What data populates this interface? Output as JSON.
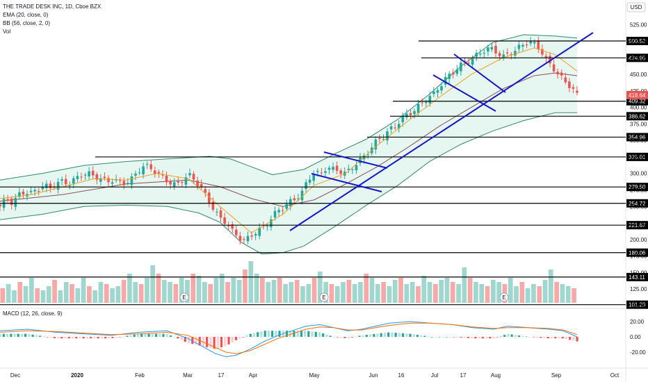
{
  "header": {
    "symbol_line": "THE TRADE DESK INC, 1D, Cboe BZX",
    "ema_line": "EMA (20, close, 0)",
    "bb_line": "BB (56, close, 2, 0)",
    "vol_line": "Vol",
    "currency": "USD",
    "macd_line": "MACD (12, 26, close, 9)"
  },
  "price_axis": {
    "ticks": [
      "525.00",
      "500.00",
      "475.00",
      "450.00",
      "425.00",
      "400.00",
      "375.00",
      "350.00",
      "325.00",
      "300.00",
      "275.00",
      "250.00",
      "225.00",
      "200.00",
      "175.00",
      "150.00",
      "125.00",
      "100.00"
    ],
    "last_price": "418.64",
    "last_price_color": "#ef5350"
  },
  "macd_axis": {
    "ticks": [
      "20.00",
      "0.00",
      "-20.00"
    ]
  },
  "time_axis": {
    "labels": [
      "Dec",
      "2020",
      "Feb",
      "Mar",
      "17",
      "Apr",
      "May",
      "Jun",
      "16",
      "Jul",
      "17",
      "Aug",
      "Sep",
      "Oct"
    ]
  },
  "earnings_markers": [
    "E",
    "E",
    "E"
  ],
  "colors": {
    "up": "#26a69a",
    "down": "#ef5350",
    "ema": "#f0a020",
    "bb_basis": "#8d4f4f",
    "bb_band": "#2e8b6a",
    "bb_fill": "#e6f6f1",
    "trendline": "#1515c9",
    "level": "#000000",
    "macd": "#2196f3",
    "signal": "#ff6d00"
  },
  "chart_data": {
    "type": "candlestick",
    "title": "THE TRADE DESK INC, 1D, Cboe BZX",
    "y_range_price": [
      100,
      530
    ],
    "y_range_macd": [
      -30,
      30
    ],
    "horizontal_levels": [
      {
        "value": 500.52,
        "label": "500.52"
      },
      {
        "value": 474.95,
        "label": "474.95"
      },
      {
        "value": 409.32,
        "label": "409.32"
      },
      {
        "value": 386.62,
        "label": "386.62"
      },
      {
        "value": 354.96,
        "label": "354.96"
      },
      {
        "value": 325.01,
        "label": "325.01"
      },
      {
        "value": 279.5,
        "label": "279.50"
      },
      {
        "value": 254.72,
        "label": "254.72"
      },
      {
        "value": 221.67,
        "label": "221.67"
      },
      {
        "value": 180.06,
        "label": "180.06"
      },
      {
        "value": 143.11,
        "label": "143.11"
      },
      {
        "value": 101.29,
        "label": "101.29"
      }
    ],
    "close_path": [
      [
        0,
        250
      ],
      [
        6,
        262
      ],
      [
        12,
        255
      ],
      [
        18,
        268
      ],
      [
        24,
        272
      ],
      [
        30,
        270
      ],
      [
        36,
        276
      ],
      [
        42,
        282
      ],
      [
        48,
        278
      ],
      [
        54,
        285
      ],
      [
        60,
        288
      ],
      [
        66,
        284
      ],
      [
        72,
        292
      ],
      [
        78,
        298
      ],
      [
        84,
        300
      ],
      [
        90,
        296
      ],
      [
        96,
        292
      ],
      [
        102,
        288
      ],
      [
        108,
        290
      ],
      [
        114,
        287
      ],
      [
        120,
        285
      ],
      [
        126,
        292
      ],
      [
        132,
        304
      ],
      [
        138,
        312
      ],
      [
        144,
        308
      ],
      [
        150,
        300
      ],
      [
        156,
        293
      ],
      [
        162,
        286
      ],
      [
        168,
        282
      ],
      [
        174,
        290
      ],
      [
        180,
        298
      ],
      [
        186,
        290
      ],
      [
        192,
        278
      ],
      [
        198,
        262
      ],
      [
        204,
        246
      ],
      [
        210,
        232
      ],
      [
        216,
        226
      ],
      [
        222,
        212
      ],
      [
        228,
        203
      ],
      [
        234,
        198
      ],
      [
        240,
        206
      ],
      [
        246,
        214
      ],
      [
        252,
        218
      ],
      [
        258,
        230
      ],
      [
        264,
        242
      ],
      [
        270,
        248
      ],
      [
        276,
        256
      ],
      [
        282,
        262
      ],
      [
        288,
        270
      ],
      [
        294,
        290
      ],
      [
        300,
        302
      ],
      [
        306,
        298
      ],
      [
        312,
        310
      ],
      [
        318,
        306
      ],
      [
        324,
        304
      ],
      [
        330,
        300
      ],
      [
        336,
        308
      ],
      [
        342,
        318
      ],
      [
        348,
        326
      ],
      [
        354,
        338
      ],
      [
        360,
        350
      ],
      [
        366,
        356
      ],
      [
        372,
        366
      ],
      [
        378,
        372
      ],
      [
        384,
        384
      ],
      [
        390,
        390
      ],
      [
        396,
        396
      ],
      [
        402,
        405
      ],
      [
        408,
        414
      ],
      [
        414,
        420
      ],
      [
        420,
        432
      ],
      [
        426,
        445
      ],
      [
        432,
        452
      ],
      [
        438,
        462
      ],
      [
        444,
        468
      ],
      [
        450,
        472
      ],
      [
        456,
        480
      ],
      [
        462,
        486
      ],
      [
        468,
        490
      ],
      [
        474,
        484
      ],
      [
        480,
        476
      ],
      [
        486,
        482
      ],
      [
        492,
        486
      ],
      [
        498,
        494
      ],
      [
        504,
        500
      ],
      [
        510,
        496
      ],
      [
        516,
        488
      ],
      [
        522,
        470
      ],
      [
        528,
        460
      ],
      [
        534,
        448
      ],
      [
        540,
        438
      ],
      [
        546,
        430
      ],
      [
        551,
        418.64
      ]
    ],
    "ema_20": [
      [
        0,
        262
      ],
      [
        30,
        268
      ],
      [
        60,
        280
      ],
      [
        90,
        292
      ],
      [
        120,
        290
      ],
      [
        150,
        300
      ],
      [
        180,
        292
      ],
      [
        210,
        250
      ],
      [
        240,
        210
      ],
      [
        270,
        238
      ],
      [
        300,
        282
      ],
      [
        330,
        300
      ],
      [
        360,
        342
      ],
      [
        390,
        380
      ],
      [
        420,
        416
      ],
      [
        450,
        450
      ],
      [
        480,
        475
      ],
      [
        510,
        490
      ],
      [
        530,
        480
      ],
      [
        551,
        455
      ]
    ],
    "bb_basis": [
      [
        0,
        258
      ],
      [
        60,
        268
      ],
      [
        120,
        284
      ],
      [
        180,
        290
      ],
      [
        210,
        280
      ],
      [
        240,
        262
      ],
      [
        270,
        250
      ],
      [
        300,
        260
      ],
      [
        330,
        284
      ],
      [
        360,
        310
      ],
      [
        390,
        340
      ],
      [
        420,
        372
      ],
      [
        450,
        400
      ],
      [
        480,
        428
      ],
      [
        510,
        448
      ],
      [
        530,
        452
      ],
      [
        551,
        448
      ]
    ],
    "bb_upper": [
      [
        0,
        290
      ],
      [
        40,
        300
      ],
      [
        80,
        312
      ],
      [
        120,
        318
      ],
      [
        160,
        322
      ],
      [
        200,
        326
      ],
      [
        220,
        322
      ],
      [
        240,
        310
      ],
      [
        260,
        298
      ],
      [
        290,
        306
      ],
      [
        320,
        330
      ],
      [
        350,
        352
      ],
      [
        380,
        382
      ],
      [
        410,
        420
      ],
      [
        440,
        462
      ],
      [
        470,
        498
      ],
      [
        500,
        510
      ],
      [
        530,
        508
      ],
      [
        551,
        505
      ]
    ],
    "bb_lower": [
      [
        0,
        230
      ],
      [
        40,
        238
      ],
      [
        80,
        250
      ],
      [
        120,
        252
      ],
      [
        160,
        250
      ],
      [
        190,
        240
      ],
      [
        210,
        226
      ],
      [
        230,
        196
      ],
      [
        250,
        178
      ],
      [
        270,
        180
      ],
      [
        290,
        190
      ],
      [
        320,
        220
      ],
      [
        350,
        252
      ],
      [
        380,
        282
      ],
      [
        410,
        318
      ],
      [
        440,
        344
      ],
      [
        470,
        364
      ],
      [
        500,
        380
      ],
      [
        530,
        392
      ],
      [
        551,
        392
      ]
    ],
    "volume_relative": [
      0.35,
      0.45,
      0.3,
      0.5,
      0.4,
      0.6,
      0.35,
      0.3,
      0.4,
      0.55,
      0.3,
      0.5,
      0.45,
      0.35,
      0.6,
      0.4,
      0.3,
      0.5,
      0.45,
      0.35,
      0.4,
      0.55,
      0.7,
      0.5,
      0.45,
      0.6,
      0.9,
      0.7,
      0.55,
      0.5,
      0.45,
      0.6,
      0.55,
      0.7,
      0.65,
      0.5,
      0.45,
      0.6,
      0.7,
      0.5,
      0.6,
      0.55,
      0.8,
      1.0,
      0.7,
      0.6,
      0.5,
      0.55,
      0.6,
      0.45,
      0.5,
      0.55,
      0.4,
      0.45,
      0.6,
      0.75,
      0.5,
      0.45,
      0.4,
      0.5,
      0.55,
      0.45,
      0.5,
      0.7,
      0.6,
      0.45,
      0.5,
      0.4,
      0.55,
      0.6,
      0.45,
      0.5,
      0.4,
      0.65,
      0.5,
      0.45,
      0.55,
      0.6,
      0.5,
      0.45,
      0.85,
      0.6,
      0.5,
      0.45,
      0.4,
      0.55,
      0.5,
      0.45,
      0.6,
      0.4,
      0.5,
      0.35,
      0.45,
      0.4,
      0.55,
      0.8,
      0.5,
      0.45,
      0.4,
      0.35
    ],
    "macd_line": [
      [
        0,
        8
      ],
      [
        40,
        10
      ],
      [
        80,
        6
      ],
      [
        120,
        4
      ],
      [
        160,
        2
      ],
      [
        200,
        6
      ],
      [
        240,
        8
      ],
      [
        270,
        -2
      ],
      [
        290,
        -12
      ],
      [
        310,
        -22
      ],
      [
        325,
        -26
      ],
      [
        340,
        -24
      ],
      [
        360,
        -16
      ],
      [
        380,
        -6
      ],
      [
        400,
        2
      ],
      [
        420,
        8
      ],
      [
        440,
        14
      ],
      [
        460,
        16
      ],
      [
        480,
        12
      ],
      [
        500,
        8
      ],
      [
        520,
        10
      ],
      [
        540,
        14
      ],
      [
        560,
        18
      ],
      [
        590,
        20
      ],
      [
        620,
        18
      ],
      [
        650,
        16
      ],
      [
        680,
        12
      ],
      [
        710,
        10
      ],
      [
        730,
        14
      ],
      [
        760,
        12
      ],
      [
        790,
        10
      ],
      [
        810,
        8
      ],
      [
        830,
        0
      ]
    ],
    "signal_line": [
      [
        0,
        6
      ],
      [
        40,
        8
      ],
      [
        80,
        7
      ],
      [
        120,
        5
      ],
      [
        160,
        3
      ],
      [
        200,
        4
      ],
      [
        240,
        6
      ],
      [
        270,
        2
      ],
      [
        290,
        -6
      ],
      [
        310,
        -14
      ],
      [
        325,
        -20
      ],
      [
        340,
        -22
      ],
      [
        360,
        -18
      ],
      [
        380,
        -10
      ],
      [
        400,
        -2
      ],
      [
        420,
        4
      ],
      [
        440,
        10
      ],
      [
        460,
        13
      ],
      [
        480,
        12
      ],
      [
        500,
        9
      ],
      [
        520,
        9
      ],
      [
        540,
        12
      ],
      [
        560,
        15
      ],
      [
        590,
        18
      ],
      [
        620,
        18
      ],
      [
        650,
        16
      ],
      [
        680,
        13
      ],
      [
        710,
        11
      ],
      [
        730,
        12
      ],
      [
        760,
        12
      ],
      [
        790,
        11
      ],
      [
        810,
        9
      ],
      [
        830,
        3
      ]
    ]
  }
}
